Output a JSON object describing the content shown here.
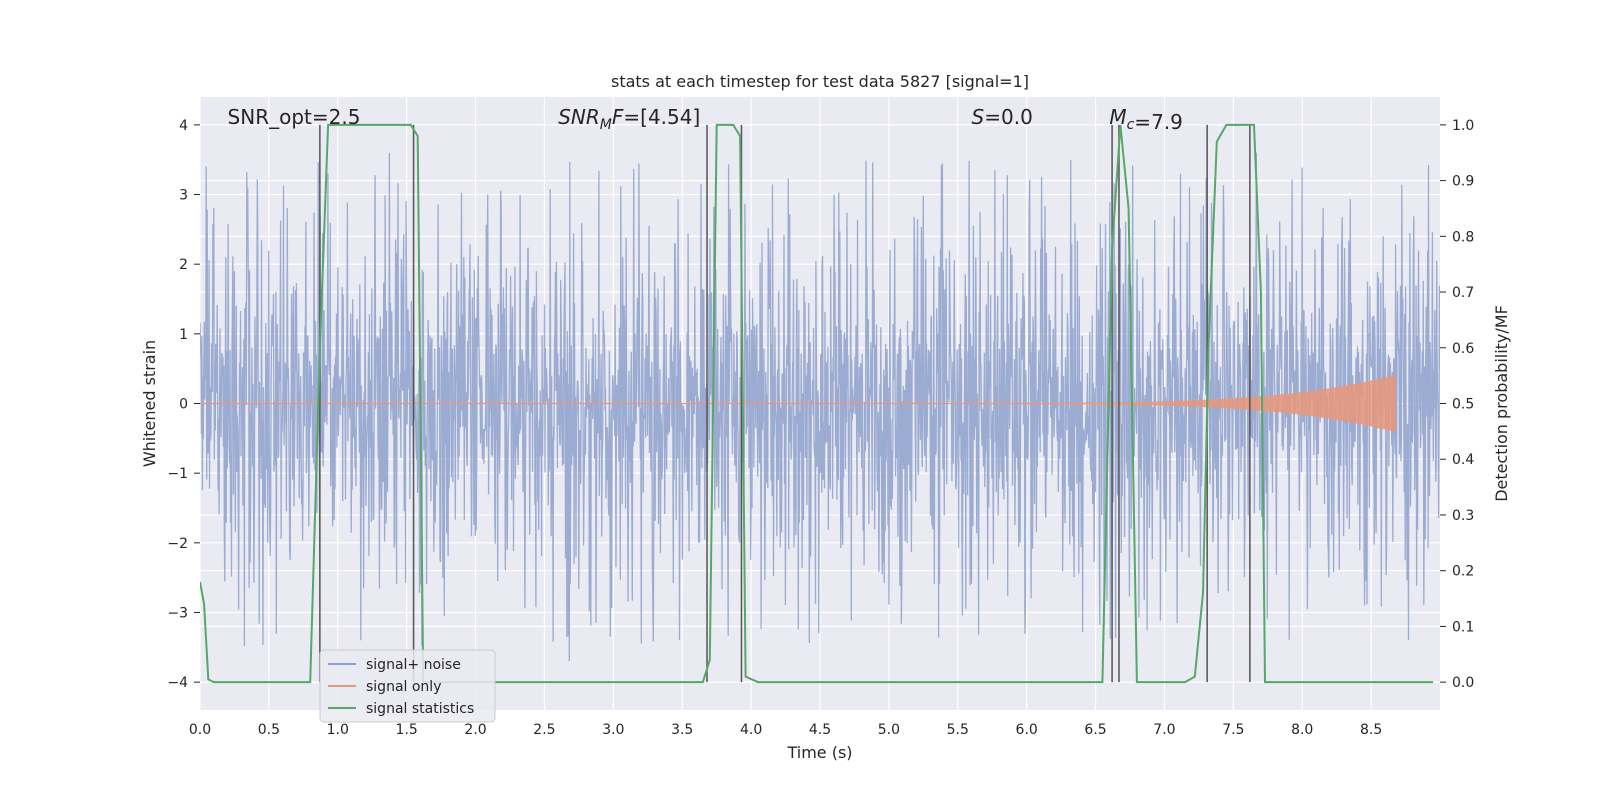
{
  "chart_data": {
    "type": "line",
    "title": "stats at each timestep for test data 5827 [signal=1]",
    "xlabel": "Time (s)",
    "ylabel": "Whitened strain",
    "y2label": "Detection probability/MF",
    "xlim": [
      0.0,
      9.0
    ],
    "ylim": [
      -4.4,
      4.4
    ],
    "y2lim": [
      -0.05,
      1.05
    ],
    "xticks": [
      "0.0",
      "0.5",
      "1.0",
      "1.5",
      "2.0",
      "2.5",
      "3.0",
      "3.5",
      "4.0",
      "4.5",
      "5.0",
      "5.5",
      "6.0",
      "6.5",
      "7.0",
      "7.5",
      "8.0",
      "8.5"
    ],
    "yticks": [
      "−4",
      "−3",
      "−2",
      "−1",
      "0",
      "1",
      "2",
      "3",
      "4"
    ],
    "y2ticks": [
      "0.0",
      "0.1",
      "0.2",
      "0.3",
      "0.4",
      "0.5",
      "0.6",
      "0.7",
      "0.8",
      "0.9",
      "1.0"
    ],
    "grid": true,
    "legend_position": "lower-left",
    "annotations": [
      {
        "prefix": "SNR_opt=",
        "sub": "",
        "suffix": "",
        "value": "2.5",
        "x": 0.2
      },
      {
        "prefix": "SNR",
        "sub": "M",
        "suffix": "F=",
        "value": "[4.54]",
        "x": 2.6
      },
      {
        "prefix": "S",
        "sub": "",
        "suffix": "=",
        "value": "0.0",
        "x": 5.6
      },
      {
        "prefix": "M",
        "sub": "c",
        "suffix": "=",
        "value": "7.9",
        "x": 6.6
      }
    ],
    "series": [
      {
        "name": "signal+ noise",
        "color": "#8da0cb",
        "axis": "left",
        "noise_band": 1.6,
        "peak_max": 3.5
      },
      {
        "name": "signal only",
        "color": "#e9967a",
        "axis": "left",
        "chirp_start": 5.5,
        "chirp_end": 8.68,
        "chirp_peak_amp": 0.4
      },
      {
        "name": "signal statistics",
        "color": "#55a868",
        "axis": "right",
        "x": [
          0.0,
          0.03,
          0.06,
          0.1,
          0.8,
          0.87,
          0.93,
          0.97,
          1.53,
          1.58,
          1.62,
          3.65,
          3.7,
          3.75,
          3.87,
          3.92,
          3.96,
          4.05,
          6.55,
          6.62,
          6.68,
          6.74,
          6.8,
          7.15,
          7.22,
          7.28,
          7.32,
          7.38,
          7.45,
          7.65,
          7.7,
          7.73,
          8.95
        ],
        "y": [
          0.18,
          0.14,
          0.005,
          0.0,
          0.0,
          0.6,
          1.0,
          1.0,
          1.0,
          0.98,
          0.0,
          0.0,
          0.04,
          1.0,
          1.0,
          0.98,
          0.01,
          0.0,
          0.0,
          0.78,
          1.0,
          0.85,
          0.0,
          0.0,
          0.01,
          0.16,
          0.6,
          0.97,
          1.0,
          1.0,
          0.7,
          0.0,
          0.0
        ]
      }
    ],
    "vlines": [
      0.87,
      1.55,
      3.68,
      3.93,
      6.62,
      6.67,
      7.31,
      7.62
    ],
    "vline_color": "#555555"
  }
}
